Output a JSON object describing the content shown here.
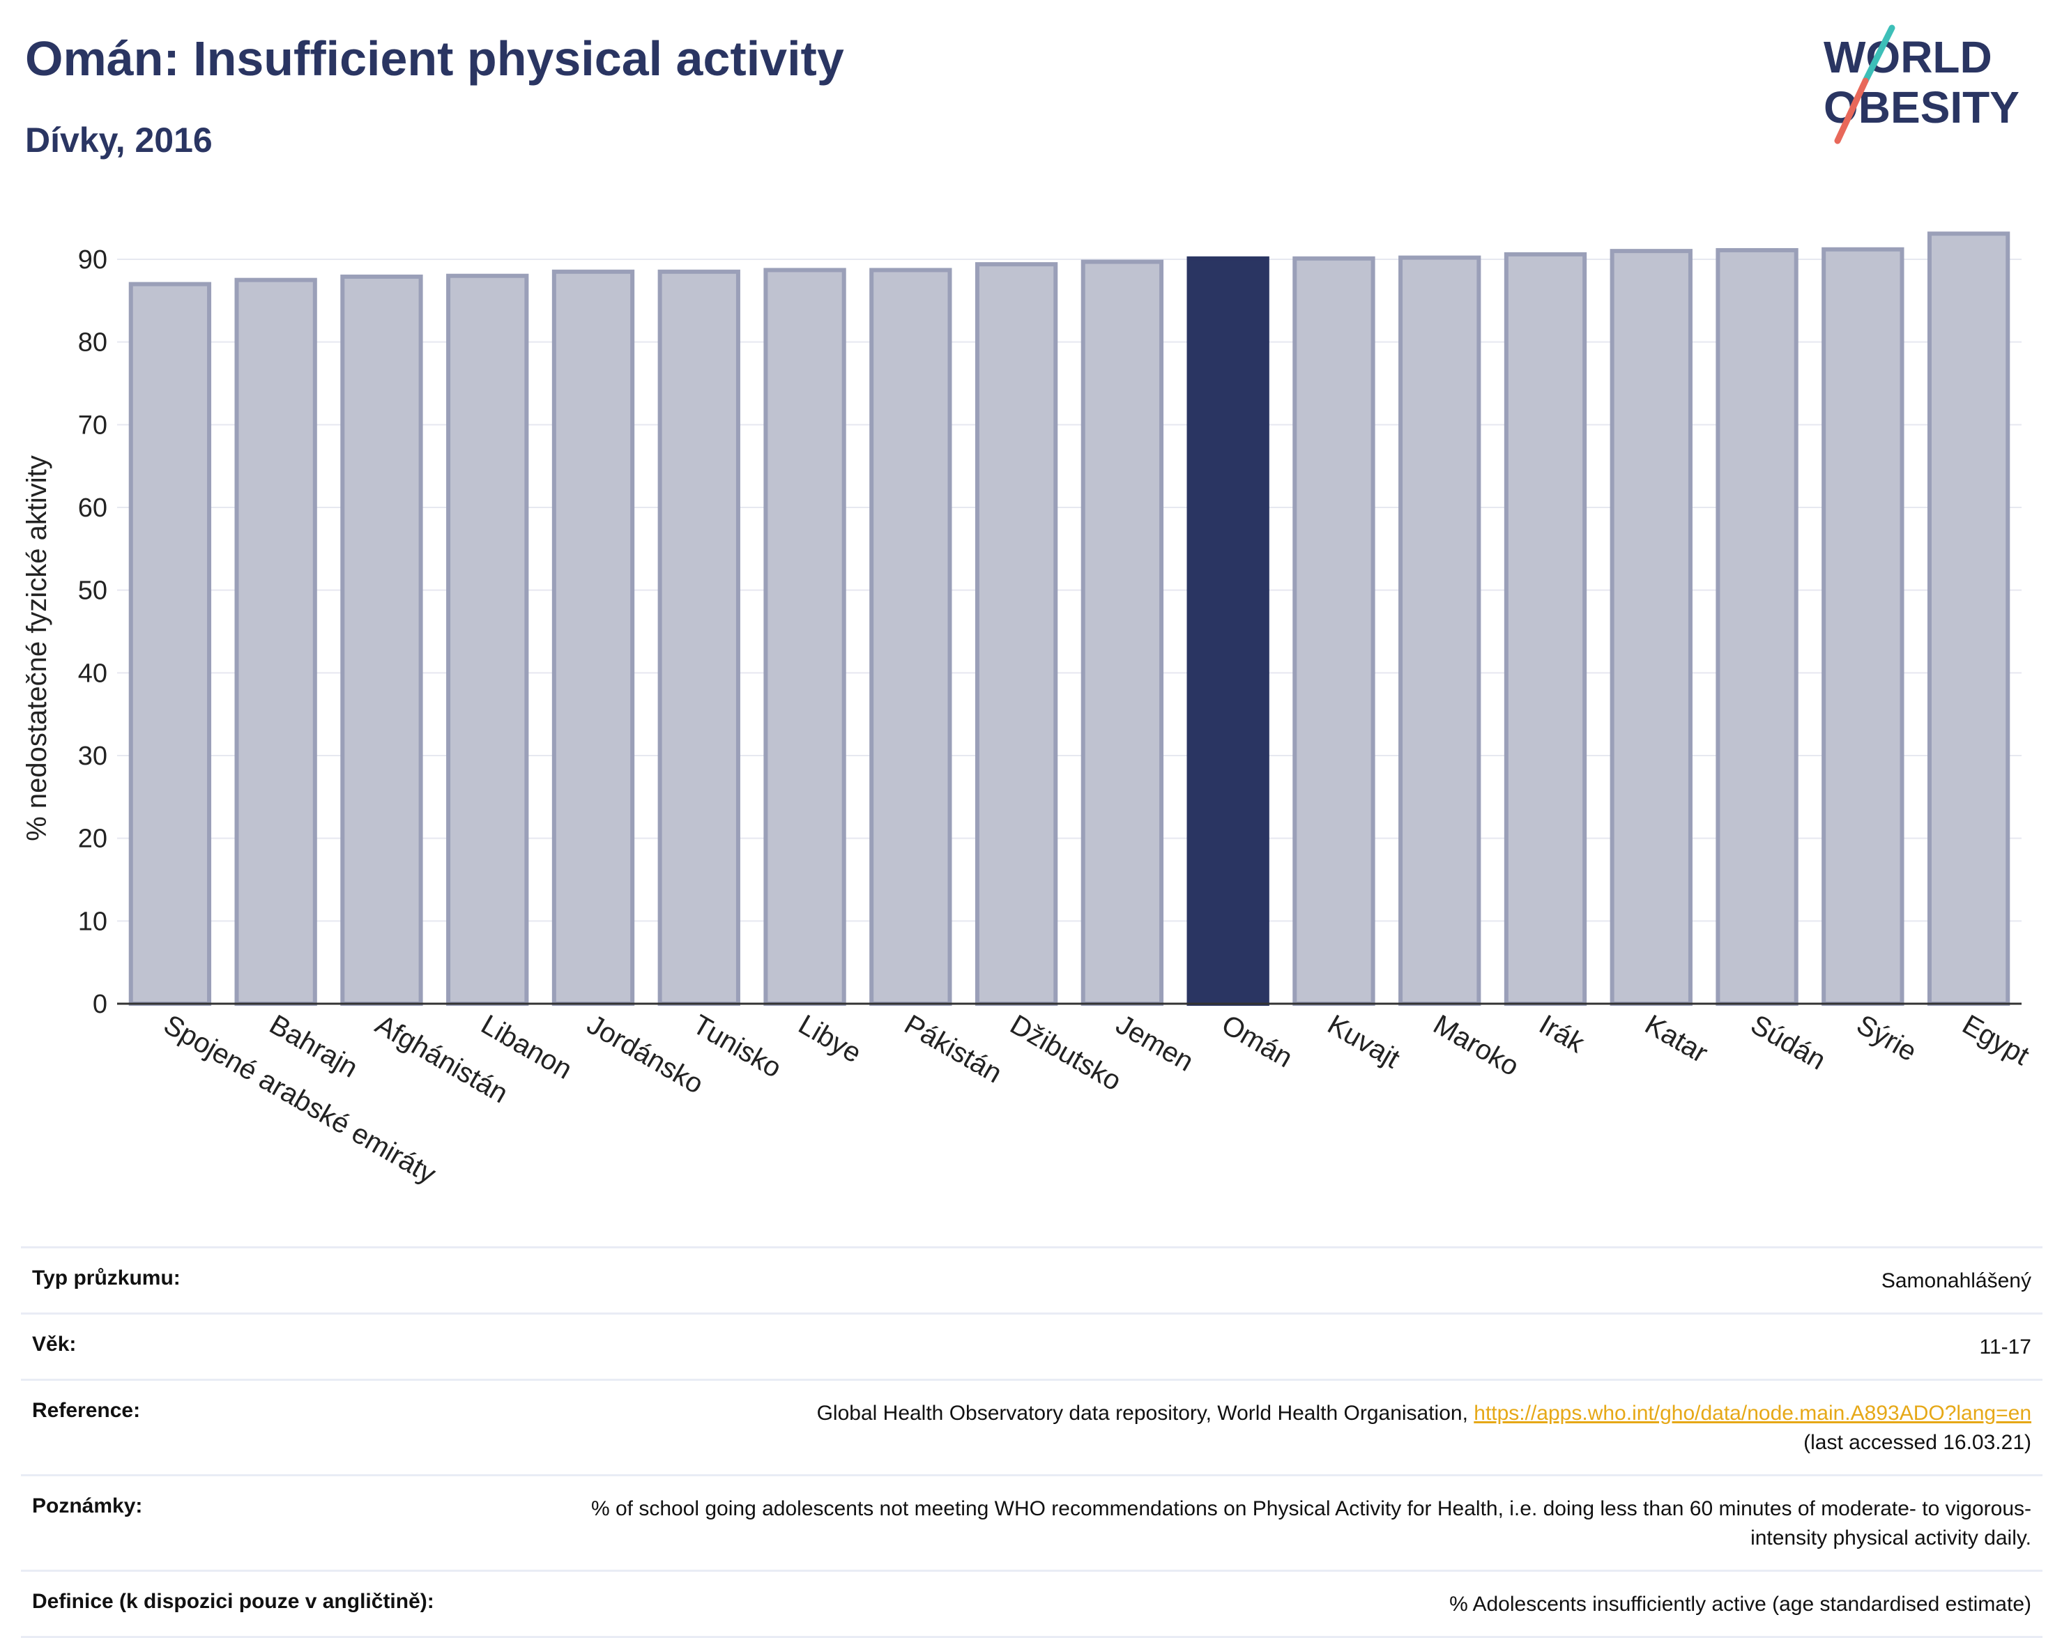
{
  "header": {
    "title": "Omán: Insufficient physical activity",
    "subtitle": "Dívky, 2016"
  },
  "logo": {
    "line1": "WORLD",
    "line2": "OBESITY"
  },
  "colors": {
    "bar": "#bfc2d0",
    "bar_border": "#9a9fb8",
    "highlight": "#2a3562",
    "text": "#2a3562",
    "link": "#e6a817"
  },
  "chart_data": {
    "type": "bar",
    "ylabel": "% nedostatečné fyzické aktivity",
    "ylim": [
      0,
      95
    ],
    "yticks": [
      0,
      10,
      20,
      30,
      40,
      50,
      60,
      70,
      80,
      90
    ],
    "grid": true,
    "highlight": "Omán",
    "categories": [
      "Spojené arabské emiráty",
      "Bahrajn",
      "Afghánistán",
      "Libanon",
      "Jordánsko",
      "Tunisko",
      "Libye",
      "Pákistán",
      "Džibutsko",
      "Jemen",
      "Omán",
      "Kuvajt",
      "Maroko",
      "Irák",
      "Katar",
      "Súdán",
      "Sýrie",
      "Egypt"
    ],
    "values": [
      87.0,
      87.5,
      87.9,
      88.0,
      88.5,
      88.5,
      88.7,
      88.7,
      89.4,
      89.7,
      90.1,
      90.1,
      90.2,
      90.6,
      91.0,
      91.1,
      91.2,
      93.1
    ]
  },
  "meta": {
    "survey_label": "Typ průzkumu:",
    "survey_value": "Samonahlášený",
    "age_label": "Věk:",
    "age_value": "11-17",
    "reference_label": "Reference:",
    "reference_text": "Global Health Observatory data repository, World Health Organisation, ",
    "reference_link": "https://apps.who.int/gho/data/node.main.A893ADO?lang=en",
    "reference_accessed": "(last accessed 16.03.21)",
    "notes_label": "Poznámky:",
    "notes_value": "% of school going adolescents not meeting WHO recommendations on Physical Activity for Health, i.e. doing less than 60 minutes of moderate- to vigorous-intensity physical activity daily.",
    "definition_label": "Definice (k dispozici pouze v angličtině):",
    "definition_value": "% Adolescents insufficiently active (age standardised estimate)"
  }
}
